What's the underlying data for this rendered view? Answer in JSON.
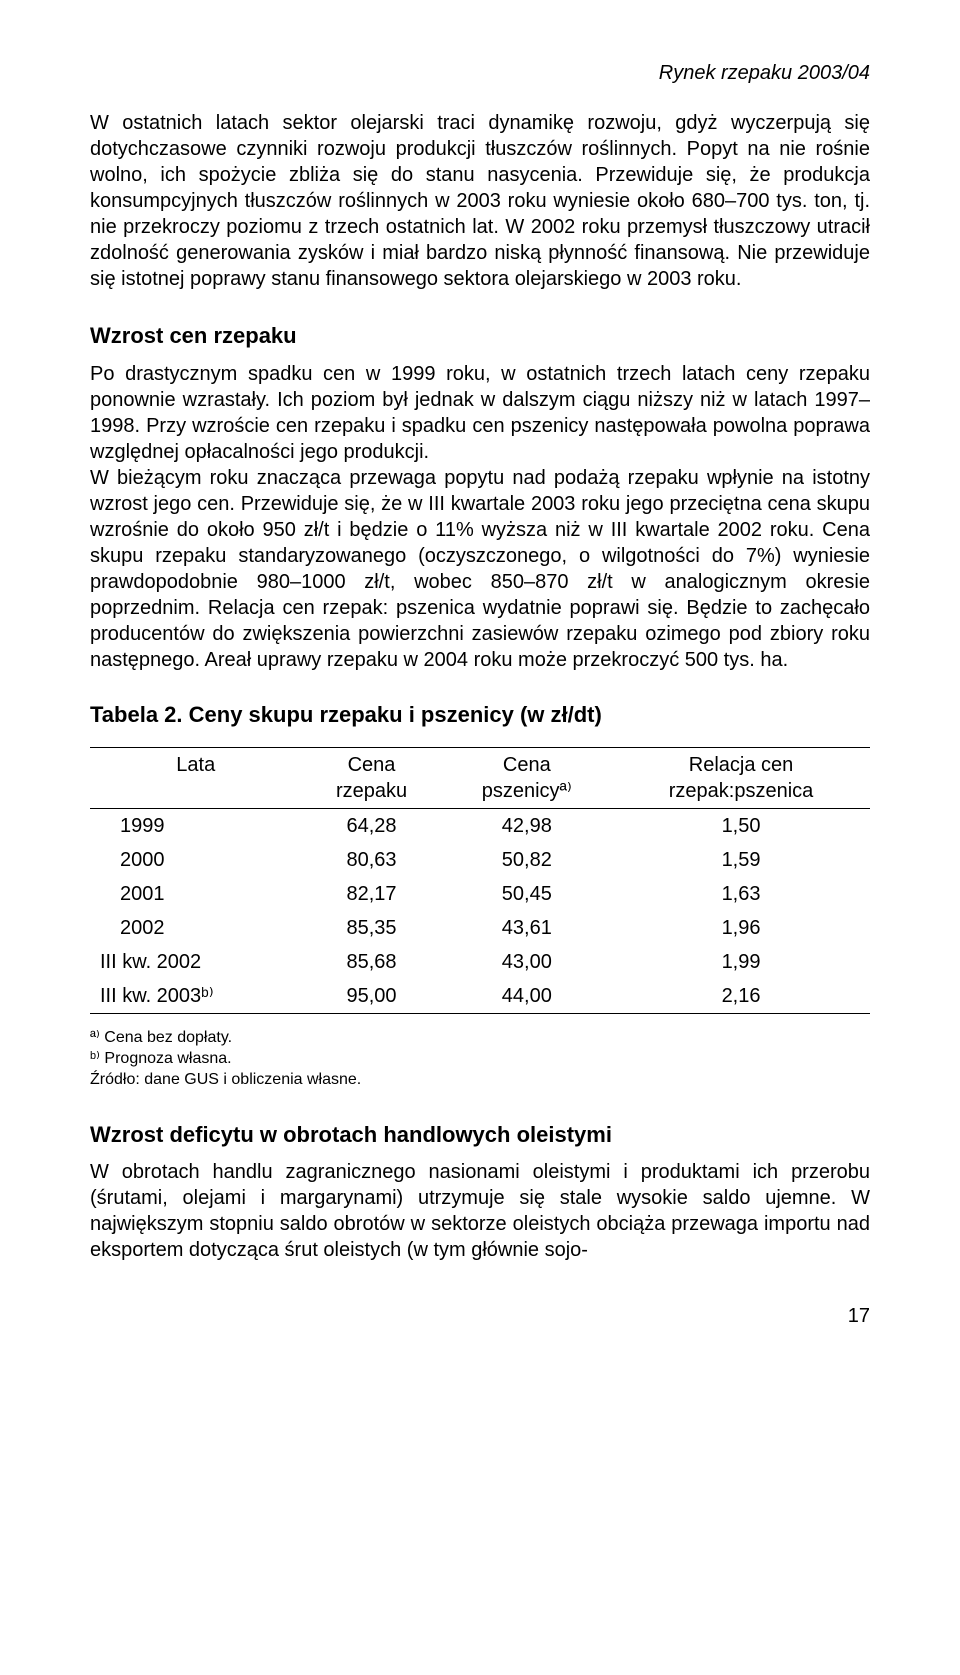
{
  "header": {
    "running_title": "Rynek rzepaku 2003/04"
  },
  "intro": {
    "para": "W ostatnich latach sektor olejarski traci dynamikę rozwoju, gdyż wyczerpują się dotychczasowe czynniki rozwoju produkcji tłuszczów roślinnych. Popyt na nie rośnie wolno, ich spożycie zbliża się do stanu nasycenia. Przewiduje się, że produkcja konsumpcyjnych tłuszczów roślinnych w 2003 roku wyniesie około 680–700 tys. ton, tj. nie przekroczy poziomu z trzech ostatnich lat. W 2002 roku przemysł tłuszczowy utracił zdolność generowania zysków i miał bardzo niską płynność finansową. Nie przewiduje się istotnej poprawy stanu finansowego sektora olejarskiego w 2003 roku."
  },
  "section1": {
    "heading": "Wzrost cen rzepaku",
    "para1": "Po drastycznym spadku cen w 1999 roku, w ostatnich trzech latach ceny rzepaku ponownie wzrastały. Ich poziom był jednak w dalszym ciągu niższy niż w latach 1997–1998. Przy wzroście cen rzepaku i spadku cen pszenicy następowała powolna poprawa względnej opłacalności jego produkcji.",
    "para2": "W bieżącym roku znacząca przewaga popytu nad podażą rzepaku wpłynie na istotny wzrost jego cen. Przewiduje się, że w III kwartale 2003 roku jego przeciętna cena skupu wzrośnie do około 950 zł/t i będzie o 11% wyższa niż w III kwartale 2002 roku. Cena skupu rzepaku standaryzowanego (oczyszczonego, o wilgotności do 7%) wyniesie prawdopodobnie 980–1000 zł/t, wobec 850–870 zł/t w analogicznym okresie poprzednim. Relacja cen rzepak: pszenica wydatnie poprawi się. Będzie to zachęcało producentów do zwiększenia powierzchni zasiewów rzepaku ozimego pod zbiory roku następnego. Areał uprawy rzepaku w 2004 roku może przekroczyć 500 tys. ha."
  },
  "table": {
    "title": "Tabela 2. Ceny skupu rzepaku i pszenicy (w zł/dt)",
    "columns": [
      {
        "line1": "Lata",
        "line2": ""
      },
      {
        "line1": "Cena",
        "line2": "rzepaku"
      },
      {
        "line1": "Cena",
        "line2": "pszenicyª⁾"
      },
      {
        "line1": "Relacja cen",
        "line2": "rzepak:pszenica"
      }
    ],
    "rows": [
      {
        "label": "1999",
        "c1": "64,28",
        "c2": "42,98",
        "c3": "1,50",
        "indent": false
      },
      {
        "label": "2000",
        "c1": "80,63",
        "c2": "50,82",
        "c3": "1,59",
        "indent": false
      },
      {
        "label": "2001",
        "c1": "82,17",
        "c2": "50,45",
        "c3": "1,63",
        "indent": false
      },
      {
        "label": "2002",
        "c1": "85,35",
        "c2": "43,61",
        "c3": "1,96",
        "indent": false
      },
      {
        "label": "III kw. 2002",
        "c1": "85,68",
        "c2": "43,00",
        "c3": "1,99",
        "indent": true
      },
      {
        "label": "III kw. 2003ᵇ⁾",
        "c1": "95,00",
        "c2": "44,00",
        "c3": "2,16",
        "indent": true
      }
    ],
    "footnotes": {
      "a": "ª⁾ Cena bez dopłaty.",
      "b": "ᵇ⁾ Prognoza własna.",
      "source": "Źródło: dane GUS i obliczenia własne."
    }
  },
  "section2": {
    "heading": "Wzrost deficytu w obrotach handlowych oleistymi",
    "para": "W obrotach handlu zagranicznego nasionami oleistymi i produktami ich przerobu (śrutami, olejami i margarynami) utrzymuje się stale wysokie saldo ujemne. W największym stopniu saldo obrotów w sektorze oleistych obciąża przewaga importu nad eksportem dotycząca śrut oleistych (w tym głównie sojo-"
  },
  "page_number": "17"
}
